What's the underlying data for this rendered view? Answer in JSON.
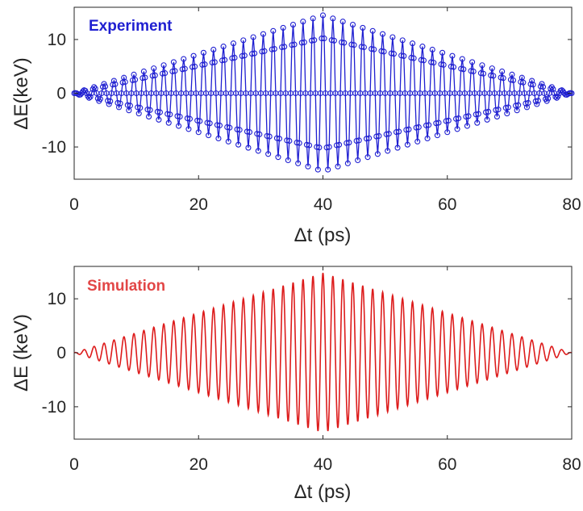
{
  "chart_data": [
    {
      "type": "line",
      "annotation": "Experiment",
      "annotation_color": "#1f1fd1",
      "series_color": "#1f1fd1",
      "markers": "circle",
      "xlabel": "Δt (ps)",
      "ylabel": "ΔE(keV)",
      "xlim": [
        0,
        80
      ],
      "ylim": [
        -16,
        16
      ],
      "xticks": [
        "0",
        "20",
        "40",
        "60",
        "80"
      ],
      "yticks": [
        "10",
        "0",
        "-10"
      ],
      "yticks_values": [
        10,
        0,
        -10
      ],
      "xticks_values": [
        0,
        20,
        40,
        60,
        80
      ],
      "signal": {
        "peak_x": 40,
        "amplitude": 14.5,
        "period": 1.6,
        "sample_step": 0.2,
        "x_start": 0,
        "x_end": 80
      }
    },
    {
      "type": "line",
      "annotation": "Simulation",
      "annotation_color": "#e24646",
      "series_color": "#dd1b1b",
      "markers": "none",
      "xlabel": "Δt (ps)",
      "ylabel": "ΔE (keV)",
      "xlim": [
        0,
        80
      ],
      "ylim": [
        -16,
        16
      ],
      "xticks": [
        "0",
        "20",
        "40",
        "60",
        "80"
      ],
      "yticks": [
        "10",
        "0",
        "-10"
      ],
      "yticks_values": [
        10,
        0,
        -10
      ],
      "xticks_values": [
        0,
        20,
        40,
        60,
        80
      ],
      "signal": {
        "peak_x": 40,
        "amplitude": 14.8,
        "period": 1.6,
        "sample_step": 0.05,
        "x_start": 0,
        "x_end": 80
      }
    }
  ]
}
